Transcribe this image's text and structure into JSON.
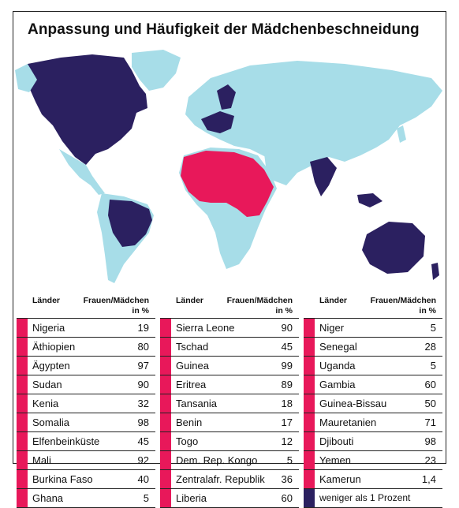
{
  "title": "Anpassung und Häufigkeit der Mädchenbeschneidung",
  "colors": {
    "affected": "#e8185a",
    "low": "#2b2060",
    "land": "#a7dde8",
    "background": "#ffffff"
  },
  "table_header": {
    "country": "Länder",
    "value_line1": "Frauen/Mädchen",
    "value_line2": "in %"
  },
  "columns": [
    {
      "rows": [
        {
          "country": "Nigeria",
          "value": "19"
        },
        {
          "country": "Äthiopien",
          "value": "80"
        },
        {
          "country": "Ägypten",
          "value": "97"
        },
        {
          "country": "Sudan",
          "value": "90"
        },
        {
          "country": "Kenia",
          "value": "32"
        },
        {
          "country": "Somalia",
          "value": "98"
        },
        {
          "country": "Elfenbeinküste",
          "value": "45"
        },
        {
          "country": "Mali",
          "value": "92"
        },
        {
          "country": "Burkina Faso",
          "value": "40"
        },
        {
          "country": "Ghana",
          "value": "5"
        }
      ]
    },
    {
      "rows": [
        {
          "country": "Sierra Leone",
          "value": "90"
        },
        {
          "country": "Tschad",
          "value": "45"
        },
        {
          "country": "Guinea",
          "value": "99"
        },
        {
          "country": "Eritrea",
          "value": "89"
        },
        {
          "country": "Tansania",
          "value": "18"
        },
        {
          "country": "Benin",
          "value": "17"
        },
        {
          "country": "Togo",
          "value": "12"
        },
        {
          "country": "Dem. Rep. Kongo",
          "value": "5"
        },
        {
          "country": "Zentralafr. Republik",
          "value": "36"
        },
        {
          "country": "Liberia",
          "value": "60"
        }
      ]
    },
    {
      "rows": [
        {
          "country": "Niger",
          "value": "5"
        },
        {
          "country": "Senegal",
          "value": "28"
        },
        {
          "country": "Uganda",
          "value": "5"
        },
        {
          "country": "Gambia",
          "value": "60"
        },
        {
          "country": "Guinea-Bissau",
          "value": "50"
        },
        {
          "country": "Mauretanien",
          "value": "71"
        },
        {
          "country": "Djibouti",
          "value": "98"
        },
        {
          "country": "Yemen",
          "value": "23"
        },
        {
          "country": "Kamerun",
          "value": "1,4"
        }
      ]
    }
  ],
  "legend": {
    "label": "weniger als 1 Prozent"
  }
}
